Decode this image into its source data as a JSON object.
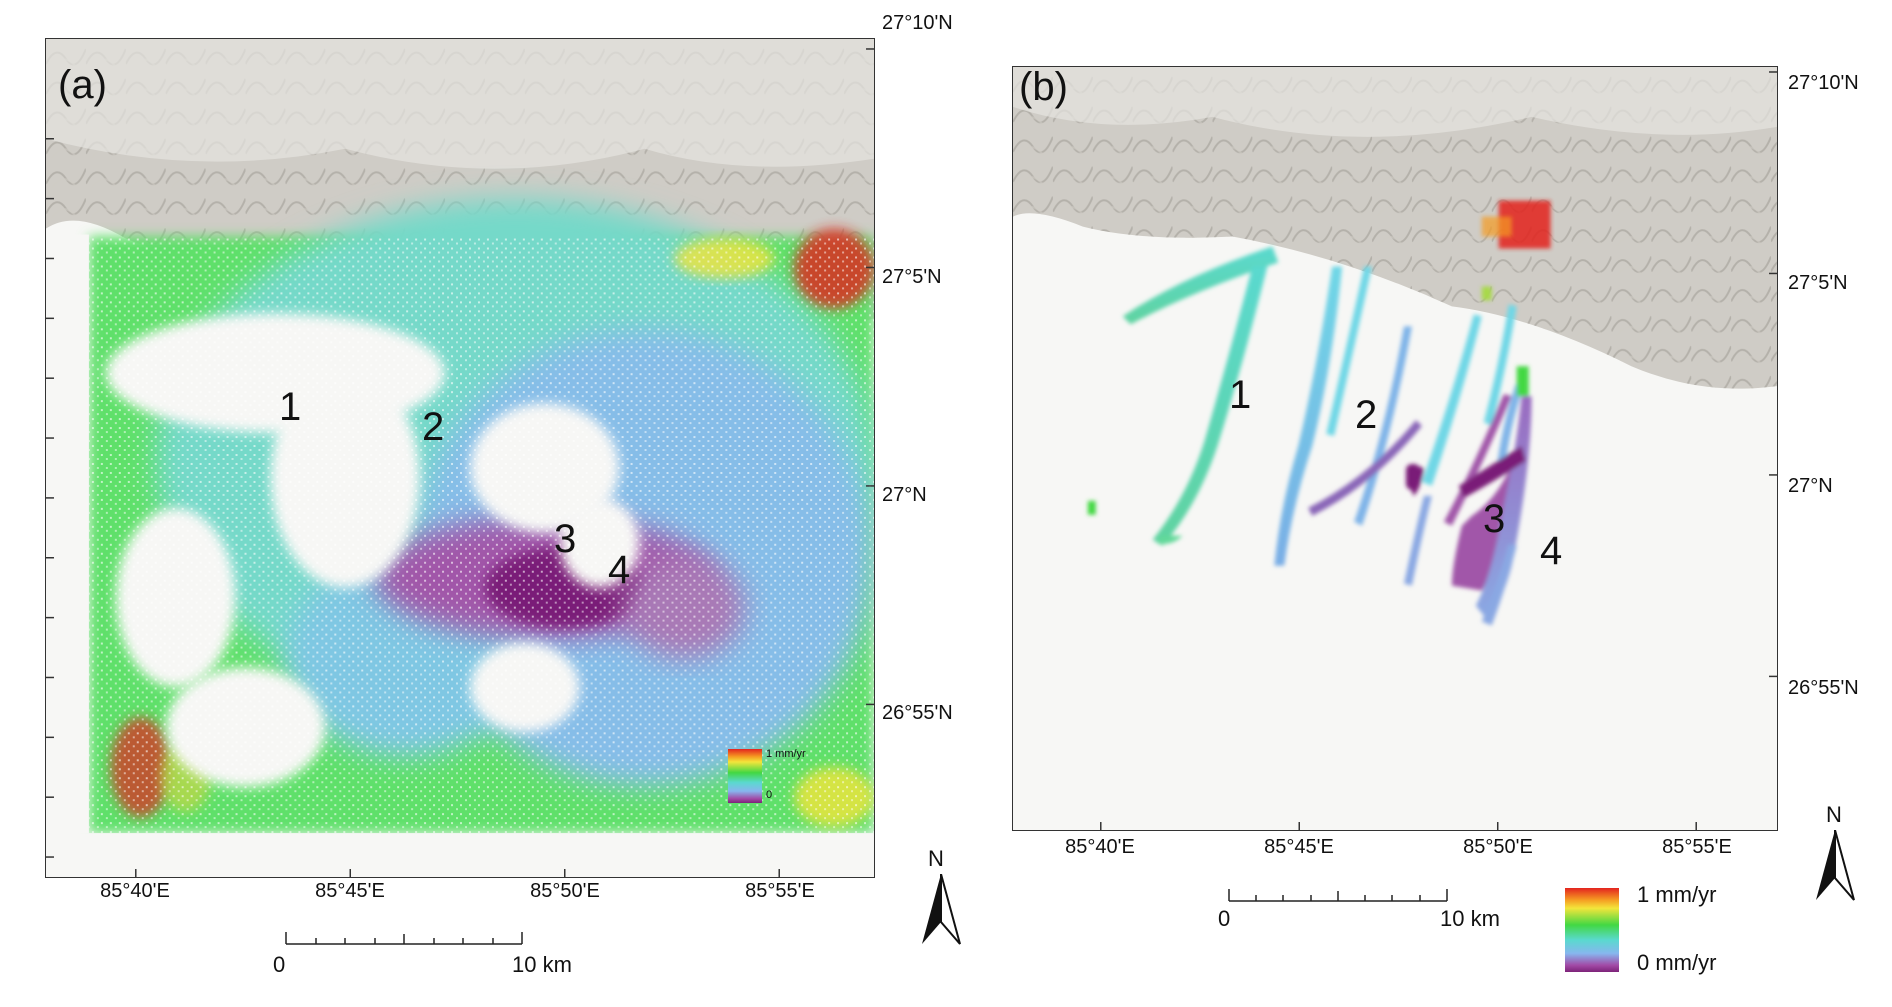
{
  "panel_a": {
    "label": "(a)",
    "regions": [
      "1",
      "2",
      "3",
      "4"
    ],
    "lat_labels": [
      "27°10'N",
      "27°5'N",
      "27°N",
      "26°55'N"
    ],
    "lon_labels": [
      "85°40'E",
      "85°45'E",
      "85°50'E",
      "85°55'E"
    ],
    "scale": {
      "start": "0",
      "end": "10 km"
    },
    "legend": {
      "max": "1 mm/yr",
      "min": "0"
    },
    "north": "N"
  },
  "panel_b": {
    "label": "(b)",
    "regions": [
      "1",
      "2",
      "3",
      "4"
    ],
    "lat_labels": [
      "27°10'N",
      "27°5'N",
      "27°N",
      "26°55'N"
    ],
    "lon_labels": [
      "85°40'E",
      "85°45'E",
      "85°50'E",
      "85°55'E"
    ],
    "scale": {
      "start": "0",
      "end": "10 km"
    },
    "legend": {
      "max": "1 mm/yr",
      "min": "0 mm/yr"
    },
    "north": "N"
  },
  "colors": {
    "ramp": [
      "#e3241f",
      "#f59b22",
      "#f3e53b",
      "#42d843",
      "#5ad9cf",
      "#87b6ee",
      "#a24aa6",
      "#7d2379"
    ],
    "hills": "#b8b4ad",
    "plain": "#f7f7f5"
  }
}
